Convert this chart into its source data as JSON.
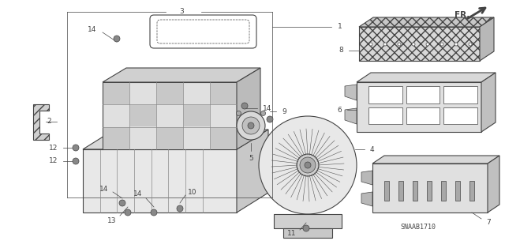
{
  "background_color": "#ffffff",
  "diagram_code": "SNAAB1710",
  "fr_label": "FR.",
  "line_color": "#444444",
  "light_fill": "#e8e8e8",
  "medium_fill": "#cccccc",
  "dark_fill": "#aaaaaa",
  "lw_main": 0.8,
  "lw_thin": 0.5,
  "font_size_label": 6.5,
  "font_size_code": 6.0
}
